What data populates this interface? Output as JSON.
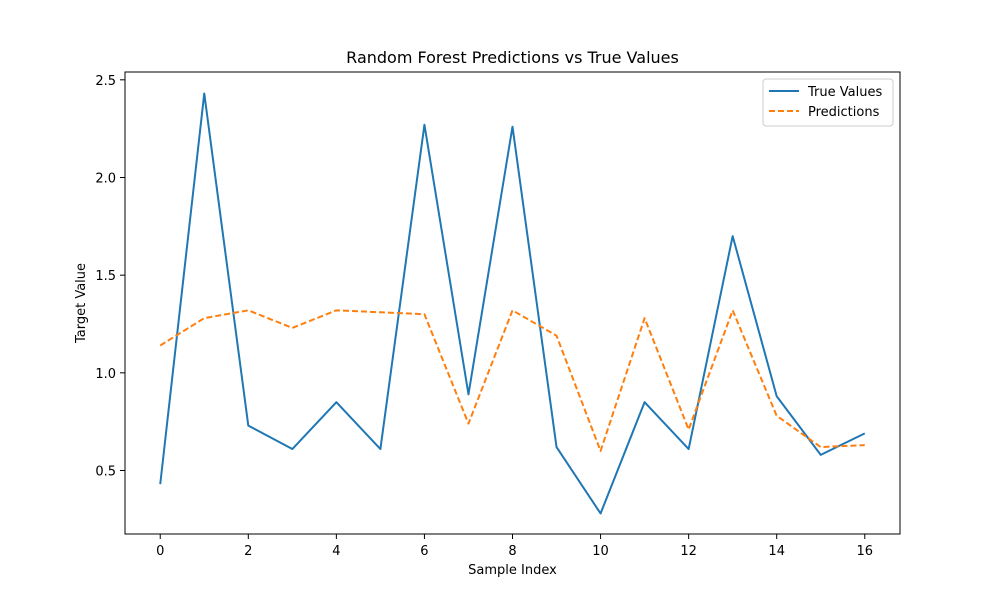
{
  "chart_data": {
    "type": "line",
    "title": "Random Forest Predictions vs True Values",
    "xlabel": "Sample Index",
    "ylabel": "Target Value",
    "x": [
      0,
      1,
      2,
      3,
      4,
      5,
      6,
      7,
      8,
      9,
      10,
      11,
      12,
      13,
      14,
      15,
      16
    ],
    "xlim": [
      -0.8,
      16.8
    ],
    "ylim": [
      0.175,
      2.54
    ],
    "xticks": [
      0,
      2,
      4,
      6,
      8,
      10,
      12,
      14,
      16
    ],
    "xtick_labels": [
      "0",
      "2",
      "4",
      "6",
      "8",
      "10",
      "12",
      "14",
      "16"
    ],
    "yticks": [
      0.5,
      1.0,
      1.5,
      2.0,
      2.5
    ],
    "ytick_labels": [
      "0.5",
      "1.0",
      "1.5",
      "2.0",
      "2.5"
    ],
    "grid": false,
    "legend_position": "top-right",
    "series": [
      {
        "name": "True Values",
        "color": "#1f77b4",
        "style": "solid",
        "values": [
          0.43,
          2.43,
          0.73,
          0.61,
          0.85,
          0.61,
          2.27,
          0.89,
          2.26,
          0.62,
          0.28,
          0.85,
          0.61,
          1.7,
          0.88,
          0.58,
          0.69
        ]
      },
      {
        "name": "Predictions",
        "color": "#ff7f0e",
        "style": "dashed",
        "values": [
          1.14,
          1.28,
          1.32,
          1.23,
          1.32,
          1.31,
          1.3,
          0.74,
          1.32,
          1.19,
          0.6,
          1.28,
          0.71,
          1.32,
          0.78,
          0.62,
          0.63
        ]
      }
    ]
  }
}
